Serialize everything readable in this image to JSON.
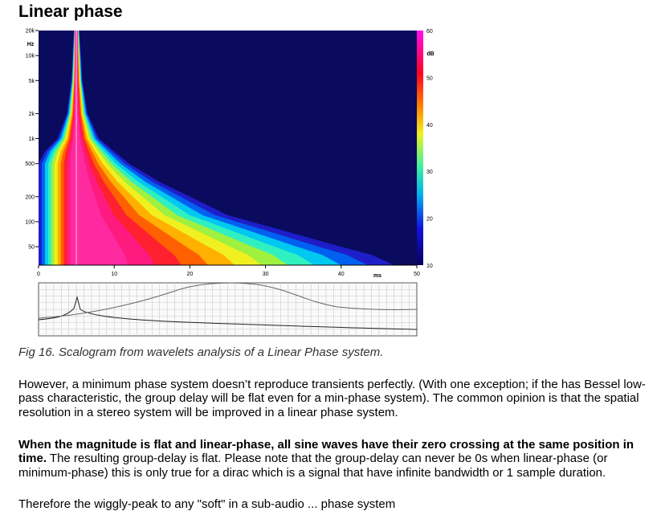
{
  "document": {
    "title": "Linear phase",
    "caption": "Fig 16. Scalogram from wavelets analysis of a Linear Phase system.",
    "paragraph1": "However, a minimum phase system doesn’t reproduce transients perfectly. (With one exception; if the has Bessel low-pass characteristic, the group delay will be flat even for a min-phase system). The common opinion is that the spatial resolution in a stereo system will be improved in a linear phase system.",
    "paragraph2_bold": "When the magnitude is flat and linear-phase, all sine waves have their zero crossing at the same position in time.",
    "paragraph2_rest": " The resulting group-delay is flat. Please note that the group-delay can never be 0s when linear-phase (or minimum-phase) this is only true for a dirac which is a signal that have infinite bandwidth or 1 sample duration.",
    "paragraph3": "Therefore the wiggly-peak to any \"soft\" in a sub-audio ... phase system"
  },
  "chart_data": {
    "type": "heatmap",
    "title": "",
    "xlabel": "ms",
    "ylabel": "Hz",
    "colorbar_label": "dB",
    "x_ticks": [
      "0",
      "10",
      "20",
      "30",
      "40",
      "50"
    ],
    "y_ticks": [
      "20k",
      "10k",
      "5k",
      "2k",
      "1k",
      "500",
      "200",
      "100",
      "50"
    ],
    "colorbar_ticks": [
      "60",
      "50",
      "40",
      "30",
      "20",
      "10"
    ],
    "xlim": [
      0,
      50
    ],
    "ylim": [
      30,
      20000
    ],
    "y_scale": "log",
    "zlim": [
      10,
      60
    ],
    "peak_time_ms": 5,
    "decay_profile": [
      {
        "freq_hz": 20000,
        "end_ms": 5.4
      },
      {
        "freq_hz": 10000,
        "end_ms": 5.6
      },
      {
        "freq_hz": 5000,
        "end_ms": 5.8
      },
      {
        "freq_hz": 2000,
        "end_ms": 6.5
      },
      {
        "freq_hz": 1000,
        "end_ms": 8
      },
      {
        "freq_hz": 700,
        "end_ms": 10
      },
      {
        "freq_hz": 500,
        "end_ms": 12
      },
      {
        "freq_hz": 300,
        "end_ms": 16
      },
      {
        "freq_hz": 200,
        "end_ms": 20
      },
      {
        "freq_hz": 120,
        "end_ms": 25
      },
      {
        "freq_hz": 80,
        "end_ms": 32
      },
      {
        "freq_hz": 50,
        "end_ms": 40
      },
      {
        "freq_hz": 40,
        "end_ms": 44
      },
      {
        "freq_hz": 30,
        "end_ms": 47
      }
    ]
  }
}
